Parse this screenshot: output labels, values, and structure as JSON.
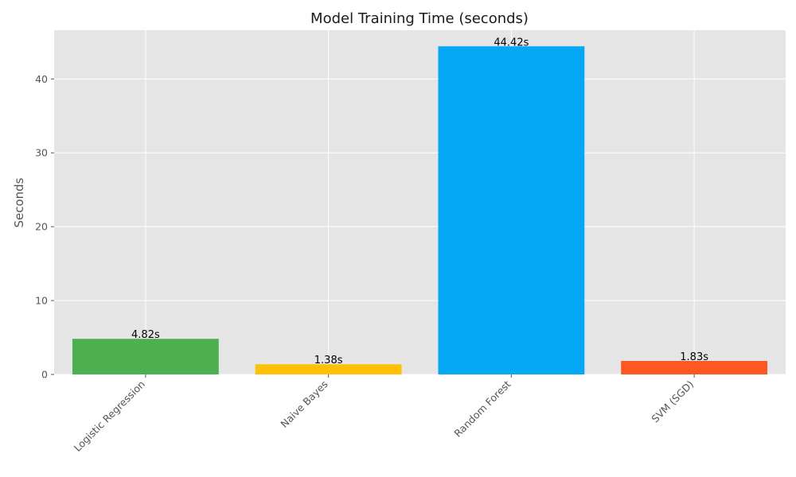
{
  "chart_data": {
    "type": "bar",
    "title": "Model Training Time (seconds)",
    "xlabel": "",
    "ylabel": "Seconds",
    "categories": [
      "Logistic Regression",
      "Naive Bayes",
      "Random Forest",
      "SVM (SGD)"
    ],
    "values": [
      4.82,
      1.38,
      44.42,
      1.83
    ],
    "data_labels": [
      "4.82s",
      "1.38s",
      "44.42s",
      "1.83s"
    ],
    "colors": [
      "#4caf50",
      "#ffc107",
      "#03a9f4",
      "#ff5722"
    ],
    "ylim": [
      0,
      46.6
    ],
    "yticks": [
      0,
      10,
      20,
      30,
      40
    ],
    "ytick_labels": [
      "0",
      "10",
      "20",
      "30",
      "40"
    ],
    "grid": true,
    "legend": false,
    "background_color": "#e5e5e5",
    "grid_color": "#ffffff"
  }
}
